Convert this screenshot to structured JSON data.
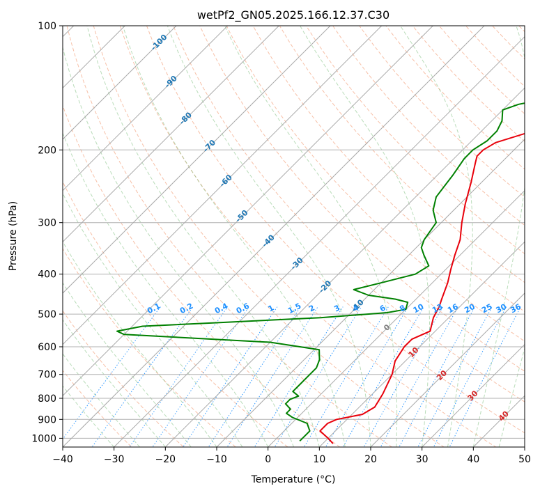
{
  "chart_data": {
    "type": "line",
    "title": "wetPf2_GN05.2025.166.12.37.C30",
    "xlabel": "Temperature (°C)",
    "ylabel": "Pressure (hPa)",
    "xlim": [
      -40,
      50
    ],
    "ylim": [
      1050,
      100
    ],
    "y_scale": "log",
    "skew": "skew-T log-p diagram",
    "grid": true,
    "x_ticks": [
      -40,
      -30,
      -20,
      -10,
      0,
      10,
      20,
      30,
      40,
      50
    ],
    "y_ticks": [
      100,
      200,
      300,
      400,
      500,
      600,
      700,
      800,
      900,
      1000
    ],
    "isotherm_labels": [
      {
        "t": -100,
        "p": 110,
        "text": "-100"
      },
      {
        "t": -90,
        "p": 137,
        "text": "-90"
      },
      {
        "t": -80,
        "p": 168,
        "text": "-80"
      },
      {
        "t": -70,
        "p": 196,
        "text": "-70"
      },
      {
        "t": -60,
        "p": 238,
        "text": "-60"
      },
      {
        "t": -50,
        "p": 290,
        "text": "-50"
      },
      {
        "t": -40,
        "p": 333,
        "text": "-40"
      },
      {
        "t": -30,
        "p": 378,
        "text": "-30"
      },
      {
        "t": -20,
        "p": 430,
        "text": "-20"
      },
      {
        "t": -10,
        "p": 478,
        "text": "-10"
      },
      {
        "t": 0,
        "p": 540,
        "text": "0"
      },
      {
        "t": 10,
        "p": 620,
        "text": "10"
      },
      {
        "t": 20,
        "p": 705,
        "text": "20"
      },
      {
        "t": 30,
        "p": 790,
        "text": "30"
      },
      {
        "t": 40,
        "p": 885,
        "text": "40"
      }
    ],
    "mixing_ratio_labels": [
      "0.1",
      "0.2",
      "0.4",
      "0.6",
      "1",
      "1.5",
      "2",
      "3",
      "4",
      "6",
      "8",
      "10",
      "13",
      "16",
      "20",
      "25",
      "30",
      "36"
    ],
    "series": [
      {
        "name": "temperature",
        "color": "#e8000b",
        "points": [
          [
            12,
            1030
          ],
          [
            10,
            1000
          ],
          [
            7,
            960
          ],
          [
            7,
            920
          ],
          [
            8,
            900
          ],
          [
            12,
            875
          ],
          [
            13,
            840
          ],
          [
            12,
            780
          ],
          [
            10,
            700
          ],
          [
            8,
            650
          ],
          [
            7,
            600
          ],
          [
            7,
            575
          ],
          [
            9,
            550
          ],
          [
            7,
            510
          ],
          [
            6,
            480
          ],
          [
            5,
            460
          ],
          [
            3,
            420
          ],
          [
            1,
            390
          ],
          [
            -1,
            360
          ],
          [
            -3,
            330
          ],
          [
            -6,
            300
          ],
          [
            -9,
            270
          ],
          [
            -12,
            240
          ],
          [
            -15,
            215
          ],
          [
            -16,
            207
          ],
          [
            -16,
            200
          ],
          [
            -15,
            192
          ],
          [
            -10,
            180
          ],
          [
            -2,
            165
          ],
          [
            3,
            152
          ],
          [
            5,
            140
          ],
          [
            6,
            125
          ],
          [
            7,
            110
          ],
          [
            8,
            100
          ]
        ]
      },
      {
        "name": "dewpoint",
        "color": "#008000",
        "points": [
          [
            5,
            1015
          ],
          [
            5,
            990
          ],
          [
            5,
            960
          ],
          [
            3,
            920
          ],
          [
            -1,
            890
          ],
          [
            -3,
            870
          ],
          [
            -3,
            850
          ],
          [
            -5,
            825
          ],
          [
            -5,
            805
          ],
          [
            -4,
            790
          ],
          [
            -6,
            770
          ],
          [
            -6,
            740
          ],
          [
            -6,
            710
          ],
          [
            -6,
            675
          ],
          [
            -7,
            645
          ],
          [
            -9,
            610
          ],
          [
            -20,
            585
          ],
          [
            -50,
            560
          ],
          [
            -52,
            550
          ],
          [
            -48,
            535
          ],
          [
            -35,
            525
          ],
          [
            -15,
            510
          ],
          [
            -3,
            496
          ],
          [
            0,
            487
          ],
          [
            -1,
            468
          ],
          [
            -4,
            460
          ],
          [
            -10,
            450
          ],
          [
            -14,
            436
          ],
          [
            -10,
            420
          ],
          [
            -5,
            400
          ],
          [
            -4,
            382
          ],
          [
            -7,
            360
          ],
          [
            -9,
            345
          ],
          [
            -10,
            330
          ],
          [
            -11,
            300
          ],
          [
            -14,
            280
          ],
          [
            -16,
            260
          ],
          [
            -17,
            230
          ],
          [
            -18,
            210
          ],
          [
            -18,
            200
          ],
          [
            -17,
            190
          ],
          [
            -17,
            180
          ],
          [
            -18,
            170
          ],
          [
            -20,
            160
          ],
          [
            -18,
            155
          ],
          [
            -13,
            150
          ],
          [
            -11,
            140
          ],
          [
            -10,
            125
          ],
          [
            -9,
            110
          ],
          [
            -8,
            100
          ]
        ]
      }
    ]
  }
}
